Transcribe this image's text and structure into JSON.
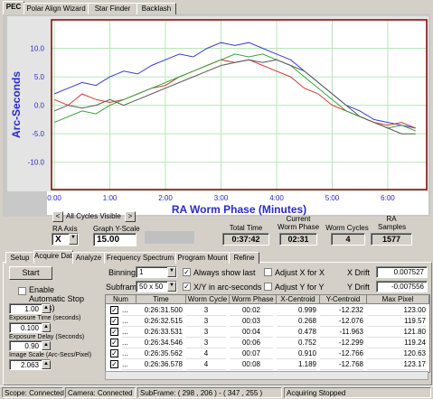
{
  "tabs_top": [
    "PEC",
    "Polar Align Wizard",
    "Star Finder",
    "Backlash"
  ],
  "chart_data": {
    "type": "line",
    "ylabel": "Arc-Seconds",
    "xlabel": "RA Worm Phase (Minutes)",
    "x": [
      0,
      0.25,
      0.5,
      0.75,
      1,
      1.25,
      1.5,
      1.75,
      2,
      2.25,
      2.5,
      2.75,
      3,
      3.25,
      3.5,
      3.75,
      4,
      4.25,
      4.5,
      4.75,
      5,
      5.25,
      5.5,
      5.75,
      6,
      6.25,
      6.5
    ],
    "series": [
      {
        "color": "#3b3bd0",
        "values": [
          2,
          3,
          4,
          3.5,
          5,
          6,
          5.5,
          7,
          8,
          9,
          8.5,
          10,
          11,
          10.5,
          11,
          10,
          9,
          8,
          6,
          4,
          2,
          0,
          -1,
          -2.5,
          -3,
          -3.5,
          -4
        ]
      },
      {
        "color": "#d03b3b",
        "values": [
          1,
          0,
          2,
          1,
          0.5,
          1,
          2,
          3,
          3.5,
          5,
          6,
          7,
          8,
          7.5,
          8,
          7,
          6,
          5,
          3,
          2,
          0,
          -1,
          -2,
          -3,
          -3.5,
          -3,
          -4
        ]
      },
      {
        "color": "#3aa33a",
        "values": [
          -3,
          -2,
          -1,
          -1.5,
          0,
          1,
          2,
          3,
          4,
          5,
          6,
          7,
          8,
          9,
          8.5,
          9,
          8,
          7,
          5,
          3,
          1,
          -1,
          -2,
          -3,
          -4,
          -3.5,
          -4.5
        ]
      },
      {
        "color": "#5a5a5a",
        "values": [
          -1,
          0,
          -0.5,
          0,
          1,
          0,
          1,
          2,
          3,
          4,
          5,
          6,
          7,
          7.5,
          8,
          7.5,
          8,
          7,
          6,
          4,
          2,
          0,
          -2,
          -3,
          -4,
          -5,
          -5
        ]
      }
    ],
    "xlim": [
      -0.05,
      6.7
    ],
    "ylim": [
      -14.8,
      15.0
    ],
    "xticks": [
      {
        "value": 0,
        "label": "0:00"
      },
      {
        "value": 1,
        "label": "1:00"
      },
      {
        "value": 2,
        "label": "2:00"
      },
      {
        "value": 3,
        "label": "3:00"
      },
      {
        "value": 4,
        "label": "4:00"
      },
      {
        "value": 5,
        "label": "5:00"
      },
      {
        "value": 6,
        "label": "6:00"
      }
    ],
    "yticks": [
      {
        "value": -10,
        "label": "-10.0"
      },
      {
        "value": -5,
        "label": "-5.0"
      },
      {
        "value": 0,
        "label": "0.0"
      },
      {
        "value": 5,
        "label": "5.0"
      },
      {
        "value": 10,
        "label": "10.0"
      }
    ],
    "grid": true
  },
  "controls": {
    "prev": "<",
    "cycles": "All Cycles Visible",
    "next": ">",
    "ra_axis_label": "RA Axis",
    "ra_axis": "X",
    "yscale_label": "Graph Y-Scale",
    "yscale": "15.00",
    "total_time_label": "Total Time",
    "total_time": "0:37:42",
    "worm_phase_label": "Current Worm Phase",
    "worm_phase": "02:31",
    "worm_cycles_label": "Worm Cycles",
    "worm_cycles": "4",
    "ra_samples_label": "RA Samples",
    "ra_samples": "1577"
  },
  "tabs_bottom": [
    "Setup",
    "Acquire Data",
    "Analyze",
    "Frequency Spectrum",
    "Program Mount",
    "Refine"
  ],
  "acquire": {
    "start": "Start",
    "auto_stop": "Enable Automatic Stop (hours)",
    "auto_stop_value": "1.00",
    "exposure_label": "Exposure Time (seconds)",
    "exposure": "0.100",
    "delay_label": "Exposure Delay (Seconds)",
    "delay": "0.90",
    "scale_label": "Image Scale (Arc-Secs/Pixel)",
    "scale": "2.063",
    "binning_label": "Binning",
    "binning": "1",
    "subframe_label": "Subframe",
    "subframe": "50 x 50",
    "always_show_last": "Always show last",
    "xy_arcsec": "X/Y in arc-seconds",
    "adjust_x": "Adjust X for X",
    "x_drift_label": "X Drift",
    "x_drift": "0.007527",
    "adjust_y": "Adjust Y for Y",
    "y_drift_label": "Y Drift",
    "y_drift": "-0.007556"
  },
  "table": {
    "headers": [
      "Num",
      "Time",
      "Worm Cycle",
      "Worm Phase",
      "X-Centroid",
      "Y-Centroid",
      "Max Pixel"
    ],
    "rows": [
      [
        "...",
        "0:26:31.500",
        "3",
        "00:02",
        "0.999",
        "-12.232",
        "123.00"
      ],
      [
        "...",
        "0:26:32.515",
        "3",
        "00:03",
        "0.268",
        "-12.076",
        "119.57"
      ],
      [
        "...",
        "0:26:33.531",
        "3",
        "00:04",
        "0.478",
        "-11.963",
        "121.80"
      ],
      [
        "...",
        "0:26:34.546",
        "3",
        "00:06",
        "0.752",
        "-12.299",
        "119.24"
      ],
      [
        "...",
        "0:26:35.562",
        "4",
        "00:07",
        "0.910",
        "-12.766",
        "120.63"
      ],
      [
        "...",
        "0:26:36.578",
        "4",
        "00:08",
        "1.189",
        "-12.768",
        "123.17"
      ]
    ]
  },
  "status": [
    "Scope: Connected",
    "Camera: Connected",
    "SubFrame: ( 298 , 206 ) - ( 347 , 255 )",
    "Acquiring Stopped"
  ]
}
